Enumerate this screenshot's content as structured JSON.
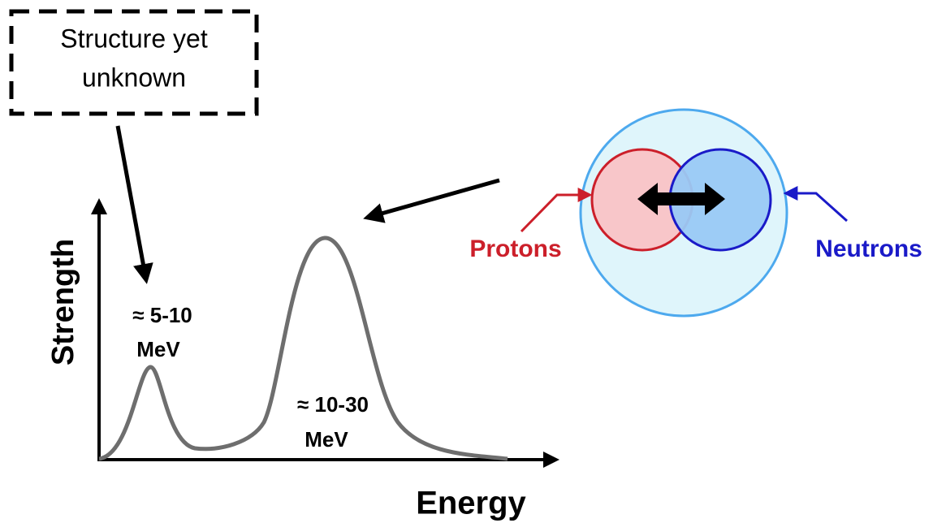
{
  "callout": {
    "lines": [
      "Structure yet",
      "unknown"
    ]
  },
  "axes": {
    "y_label": "Strength",
    "x_label": "Energy"
  },
  "peaks": [
    {
      "lines": [
        "≈ 5-10",
        "MeV"
      ]
    },
    {
      "lines": [
        "≈ 10-30",
        "MeV"
      ]
    }
  ],
  "nucleus": {
    "protons": "Protons",
    "neutrons": "Neutrons"
  }
}
